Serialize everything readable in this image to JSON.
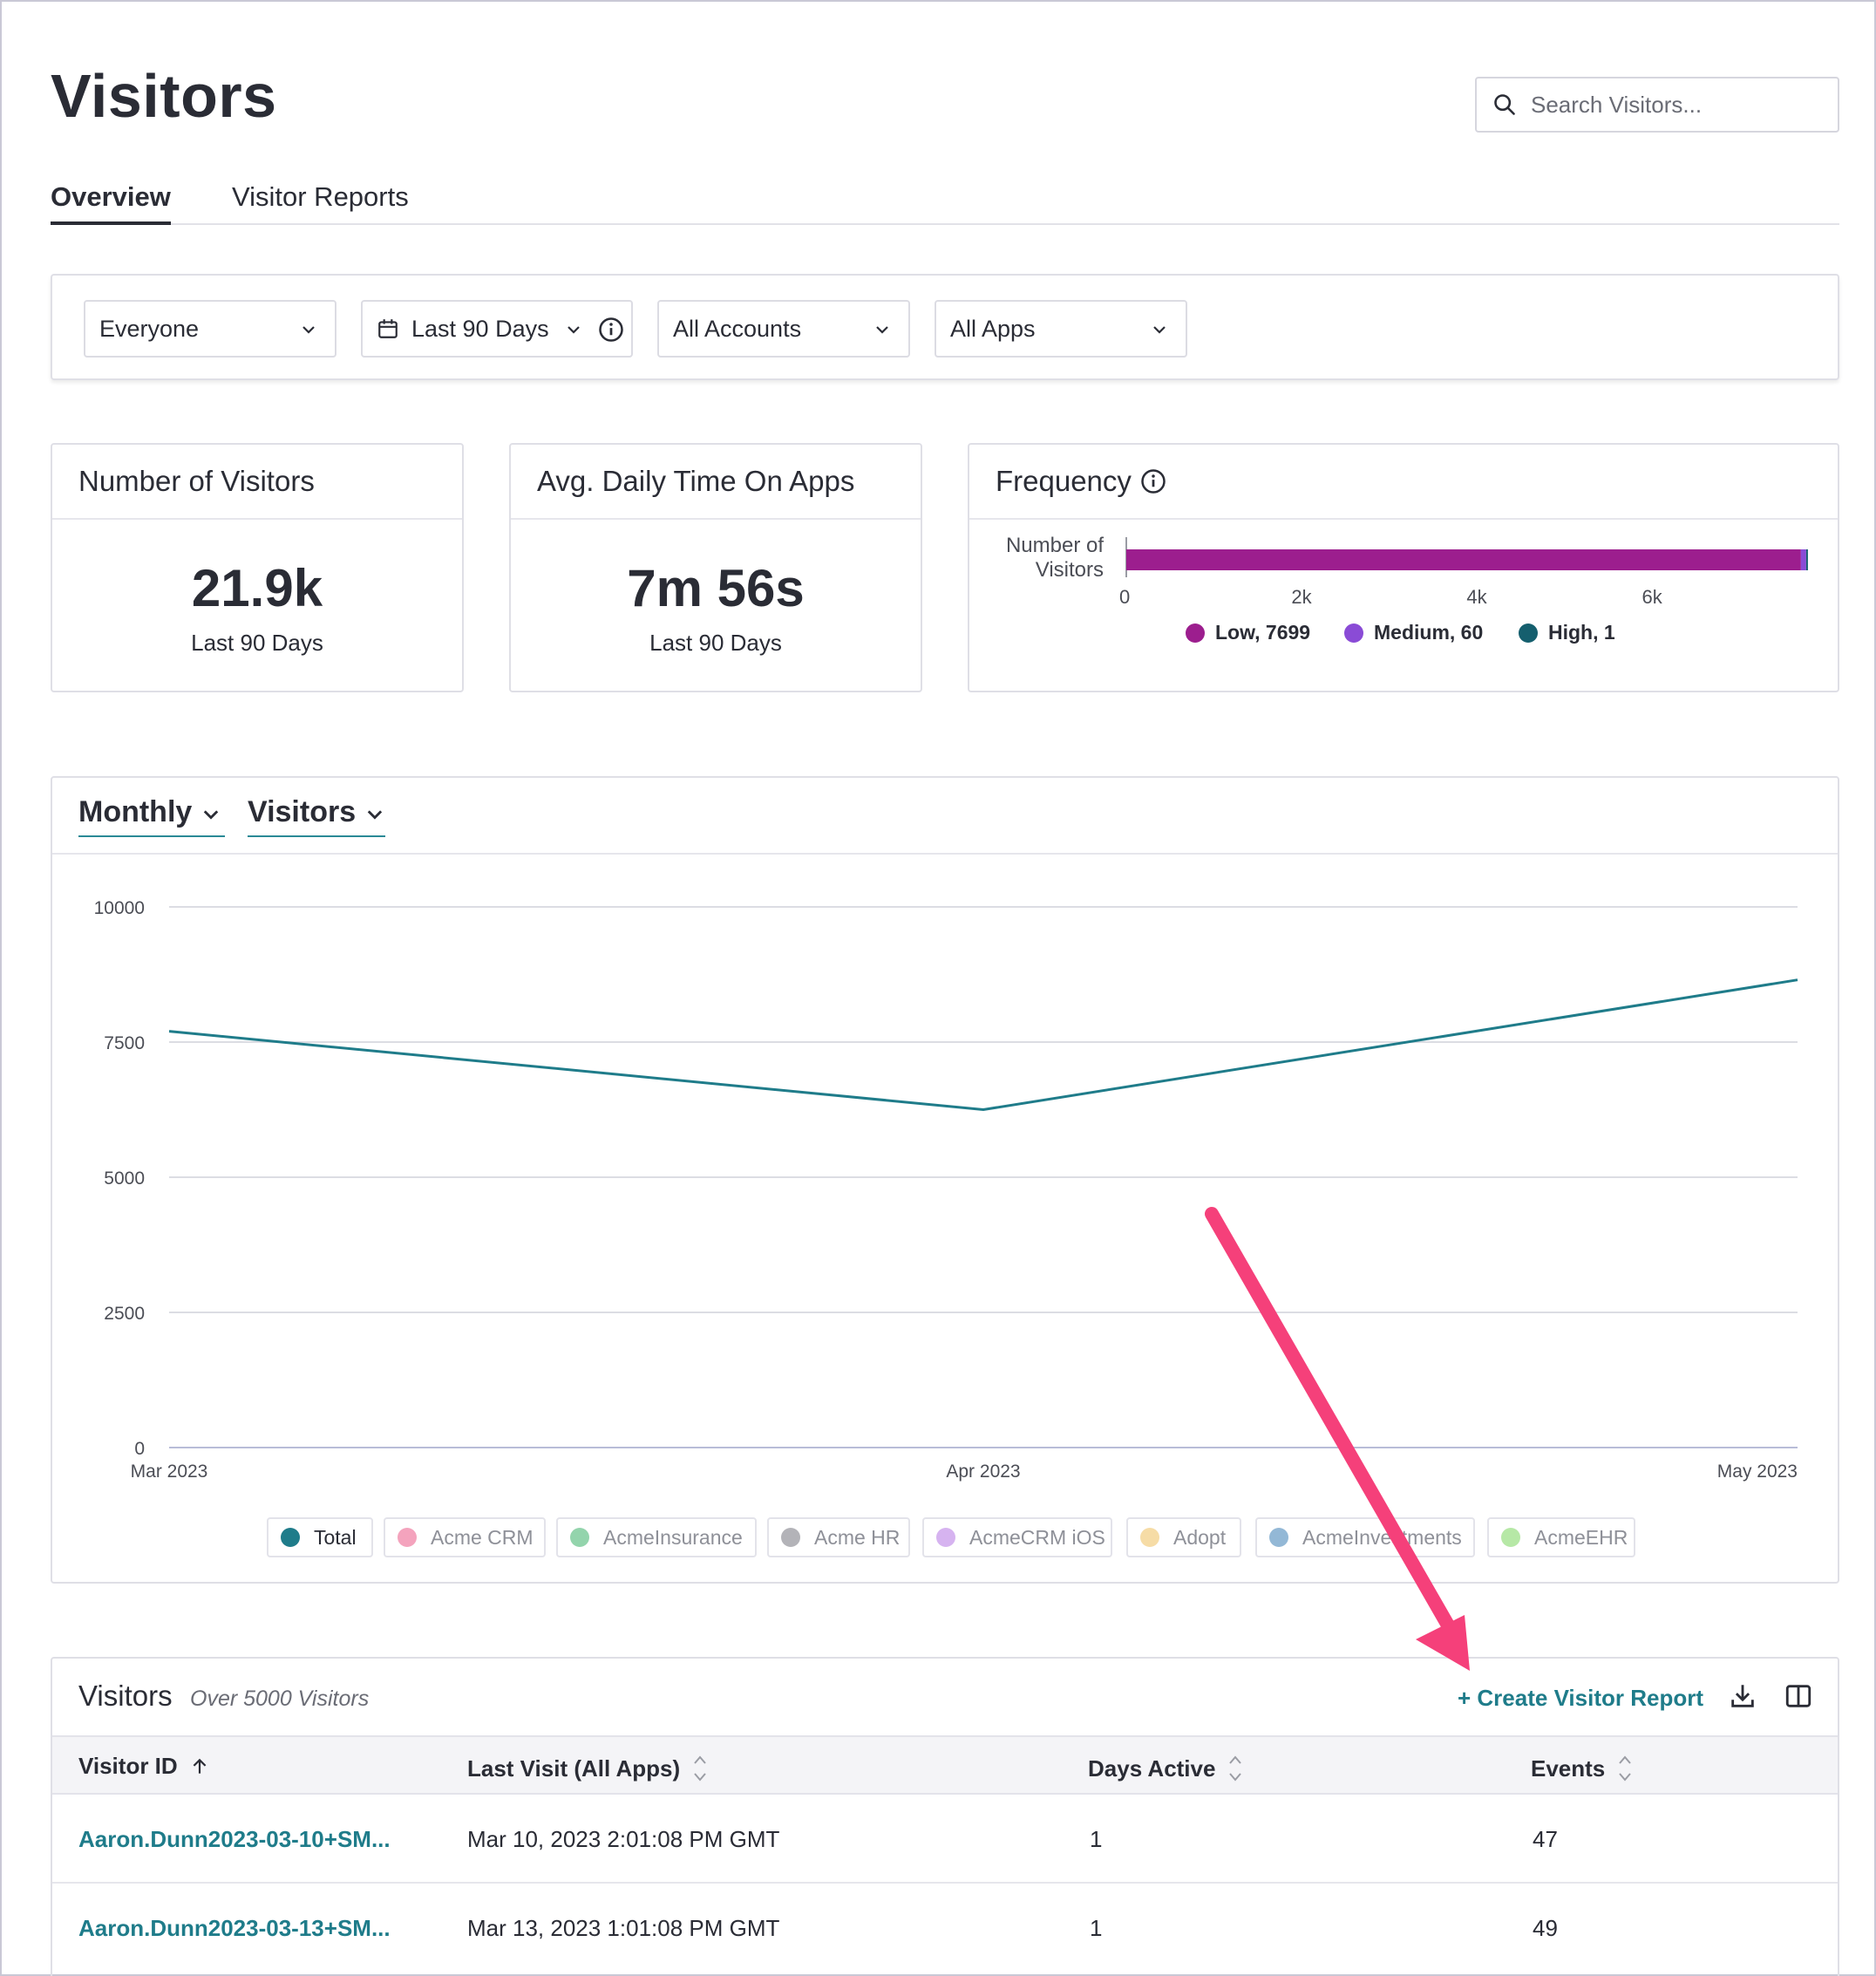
{
  "page": {
    "title": "Visitors"
  },
  "search": {
    "placeholder": "Search Visitors..."
  },
  "tabs": [
    {
      "label": "Overview",
      "active": true
    },
    {
      "label": "Visitor Reports",
      "active": false
    }
  ],
  "filters": {
    "segment": "Everyone",
    "date_range": "Last 90 Days",
    "accounts": "All Accounts",
    "apps": "All Apps"
  },
  "cards": {
    "visitors": {
      "title": "Number of Visitors",
      "value": "21.9k",
      "sub": "Last 90 Days"
    },
    "time": {
      "title": "Avg. Daily Time On Apps",
      "value": "7m 56s",
      "sub": "Last 90 Days"
    },
    "frequency": {
      "title": "Frequency",
      "ylabel_line1": "Number of",
      "ylabel_line2": "Visitors",
      "ticks": [
        "0",
        "2k",
        "4k",
        "6k"
      ],
      "legend": [
        {
          "label": "Low, 7699",
          "color": "#9c1e8e"
        },
        {
          "label": "Medium, 60",
          "color": "#8a4bd6"
        },
        {
          "label": "High, 1",
          "color": "#155f6e"
        }
      ]
    }
  },
  "chart_controls": {
    "period": "Monthly",
    "metric": "Visitors"
  },
  "chart_data": {
    "type": "line",
    "x": [
      "Mar 2023",
      "Apr 2023",
      "May 2023"
    ],
    "y_ticks": [
      "0",
      "2500",
      "5000",
      "7500",
      "10000"
    ],
    "ylim": [
      0,
      10000
    ],
    "grid": true,
    "series": [
      {
        "name": "Total",
        "values": [
          7700,
          6250,
          8650
        ],
        "color": "#1f7c8a"
      }
    ],
    "stacked_bar": {
      "categories": [
        "Low",
        "Medium",
        "High"
      ],
      "values": [
        7699,
        60,
        1
      ],
      "xlim": [
        0,
        7760
      ]
    }
  },
  "legend_pills": [
    {
      "label": "Total",
      "color": "#1f7c8a",
      "active": true
    },
    {
      "label": "Acme CRM",
      "color": "#f4a3bd",
      "active": false
    },
    {
      "label": "AcmeInsurance",
      "color": "#93d4ac",
      "active": false
    },
    {
      "label": "Acme HR",
      "color": "#b3b3b8",
      "active": false
    },
    {
      "label": "AcmeCRM iOS",
      "color": "#d6b3f0",
      "active": false
    },
    {
      "label": "Adopt",
      "color": "#f6dca6",
      "active": false
    },
    {
      "label": "AcmeInvestments",
      "color": "#93b8d6",
      "active": false
    },
    {
      "label": "AcmeEHR",
      "color": "#b6e8a6",
      "active": false
    }
  ],
  "table": {
    "title": "Visitors",
    "subtitle": "Over 5000 Visitors",
    "create_label": "+ Create Visitor Report",
    "columns": [
      "Visitor ID",
      "Last Visit (All Apps)",
      "Days Active",
      "Events"
    ],
    "rows": [
      {
        "id": "Aaron.Dunn2023-03-10+SM...",
        "last_visit": "Mar 10, 2023 2:01:08 PM GMT",
        "days": "1",
        "events": "47"
      },
      {
        "id": "Aaron.Dunn2023-03-13+SM...",
        "last_visit": "Mar 13, 2023 1:01:08 PM GMT",
        "days": "1",
        "events": "49"
      }
    ]
  },
  "annotation": {
    "arrow_color": "#f5407a"
  }
}
